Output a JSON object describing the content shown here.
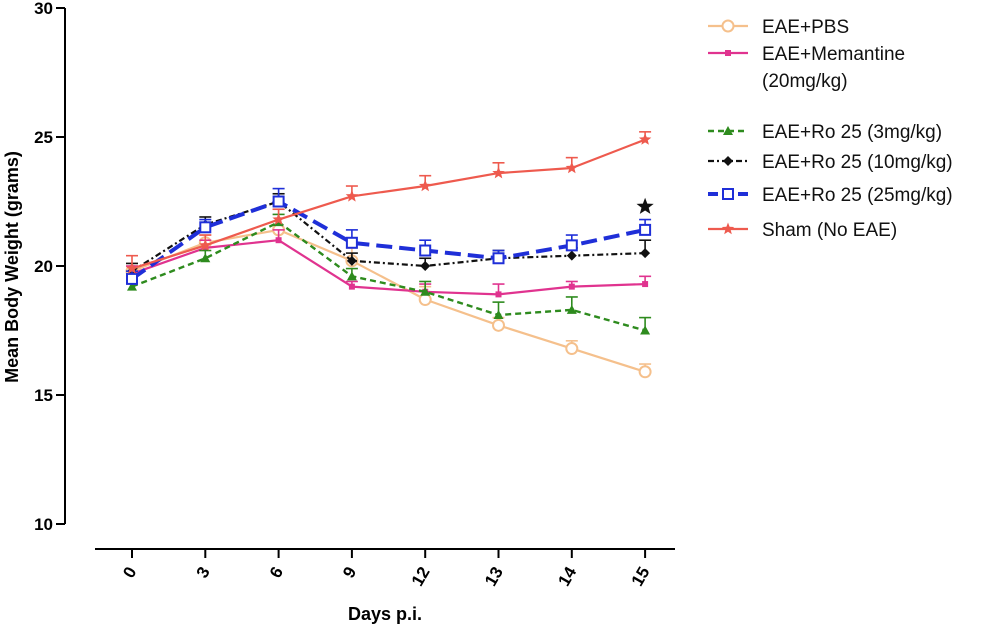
{
  "chart_data": {
    "type": "line",
    "xlabel": "Days p.i.",
    "ylabel": "Mean Body Weight (grams)",
    "categories": [
      "0",
      "3",
      "6",
      "9",
      "12",
      "13",
      "14",
      "15"
    ],
    "ylim": [
      10,
      30
    ],
    "yticks": [
      10,
      15,
      20,
      25,
      30
    ],
    "grid": false,
    "legend_position": "right",
    "significance_marker": {
      "symbol": "★",
      "category": "15",
      "value": 22.3
    },
    "series": [
      {
        "name": "EAE+PBS",
        "color": "#f5c08c",
        "marker": "circle-open",
        "dash": "solid",
        "values": [
          19.8,
          20.9,
          21.4,
          20.2,
          18.7,
          17.7,
          16.8,
          15.9
        ],
        "errors": [
          0.3,
          0.3,
          0.8,
          0.5,
          0.5,
          0.3,
          0.3,
          0.3
        ]
      },
      {
        "name": "EAE+Memantine (20mg/kg)",
        "color": "#e0338f",
        "marker": "square-small",
        "dash": "solid",
        "values": [
          19.7,
          20.7,
          21.0,
          19.2,
          19.0,
          18.9,
          19.2,
          19.3
        ],
        "errors": [
          0.3,
          0.3,
          0.4,
          0.2,
          0.3,
          0.4,
          0.2,
          0.3
        ]
      },
      {
        "name": "EAE+Ro 25 (3mg/kg)",
        "color": "#2e8b1e",
        "marker": "triangle",
        "dash": "dashed",
        "values": [
          19.2,
          20.3,
          21.7,
          19.6,
          19.0,
          18.1,
          18.3,
          17.5
        ],
        "errors": [
          0.2,
          0.3,
          0.3,
          0.3,
          0.4,
          0.5,
          0.5,
          0.5
        ]
      },
      {
        "name": "EAE+Ro 25 (10mg/kg)",
        "color": "#111111",
        "marker": "diamond",
        "dash": "dashdot",
        "values": [
          19.8,
          21.6,
          22.5,
          20.2,
          20.0,
          20.3,
          20.4,
          20.5
        ],
        "errors": [
          0.3,
          0.3,
          0.3,
          0.3,
          0.3,
          0.3,
          0.3,
          0.5
        ]
      },
      {
        "name": "EAE+Ro 25 (25mg/kg)",
        "color": "#1f2fd8",
        "marker": "square-open",
        "dash": "longdash",
        "values": [
          19.5,
          21.5,
          22.5,
          20.9,
          20.6,
          20.3,
          20.8,
          21.4
        ],
        "errors": [
          0.3,
          0.3,
          0.5,
          0.5,
          0.4,
          0.3,
          0.4,
          0.4
        ]
      },
      {
        "name": "Sham (No EAE)",
        "color": "#ee5a4e",
        "marker": "star",
        "dash": "solid",
        "values": [
          19.9,
          20.8,
          21.8,
          22.7,
          23.1,
          23.6,
          23.8,
          24.9
        ],
        "errors": [
          0.5,
          0.4,
          0.4,
          0.4,
          0.4,
          0.4,
          0.4,
          0.3
        ]
      }
    ]
  },
  "legend_lines": [
    [
      "EAE+PBS"
    ],
    [
      "EAE+Memantine",
      "(20mg/kg)"
    ],
    [
      "EAE+Ro 25 (3mg/kg)"
    ],
    [
      "EAE+Ro 25 (10mg/kg)"
    ],
    [
      "EAE+Ro 25 (25mg/kg)"
    ],
    [
      "Sham (No EAE)"
    ]
  ]
}
